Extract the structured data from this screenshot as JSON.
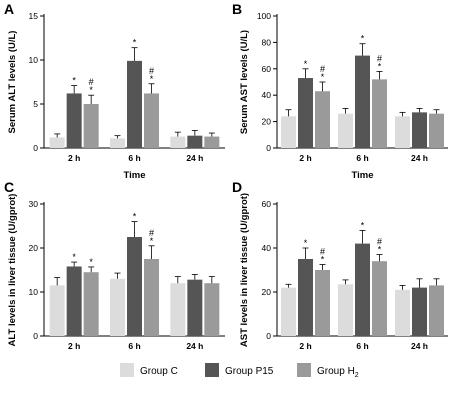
{
  "colors": {
    "group_c": "#dcdcdc",
    "group_p15": "#555555",
    "group_h2": "#9a9a9a",
    "axis": "#000000"
  },
  "legend": {
    "items": [
      {
        "label": "Group C",
        "color": "#dcdcdc"
      },
      {
        "label": "Group P15",
        "color": "#555555"
      },
      {
        "label": "Group H",
        "sub": "2",
        "color": "#9a9a9a"
      }
    ]
  },
  "chart_data": [
    {
      "type": "bar",
      "panel": "A",
      "ylabel": "Serum ALT levels (U/L)",
      "xlabel": "Time",
      "categories": [
        "2 h",
        "6 h",
        "24 h"
      ],
      "ylim": [
        0,
        15
      ],
      "yticks": [
        0,
        5,
        10,
        15
      ],
      "series": [
        {
          "name": "Group C",
          "values": [
            1.2,
            1.1,
            1.3
          ],
          "errors": [
            0.4,
            0.3,
            0.5
          ]
        },
        {
          "name": "Group P15",
          "values": [
            6.2,
            9.9,
            1.4
          ],
          "errors": [
            0.9,
            1.5,
            0.6
          ]
        },
        {
          "name": "Group H2",
          "values": [
            5.0,
            6.2,
            1.3
          ],
          "errors": [
            1.0,
            1.1,
            0.4
          ]
        }
      ],
      "annotations": [
        {
          "category": "2 h",
          "series": "Group P15",
          "marks": [
            "*"
          ]
        },
        {
          "category": "2 h",
          "series": "Group H2",
          "marks": [
            "#",
            "*"
          ]
        },
        {
          "category": "6 h",
          "series": "Group P15",
          "marks": [
            "*"
          ]
        },
        {
          "category": "6 h",
          "series": "Group H2",
          "marks": [
            "#",
            "*"
          ]
        }
      ]
    },
    {
      "type": "bar",
      "panel": "B",
      "ylabel": "Serum AST levels (U/L)",
      "xlabel": "Time",
      "categories": [
        "2 h",
        "6 h",
        "24 h"
      ],
      "ylim": [
        0,
        100
      ],
      "yticks": [
        0,
        20,
        40,
        60,
        80,
        100
      ],
      "series": [
        {
          "name": "Group C",
          "values": [
            24,
            26,
            24
          ],
          "errors": [
            5,
            4,
            3
          ]
        },
        {
          "name": "Group P15",
          "values": [
            53,
            70,
            27
          ],
          "errors": [
            7,
            9,
            3
          ]
        },
        {
          "name": "Group H2",
          "values": [
            43,
            52,
            26
          ],
          "errors": [
            7,
            6,
            3
          ]
        }
      ],
      "annotations": [
        {
          "category": "2 h",
          "series": "Group P15",
          "marks": [
            "*"
          ]
        },
        {
          "category": "2 h",
          "series": "Group H2",
          "marks": [
            "#",
            "*"
          ]
        },
        {
          "category": "6 h",
          "series": "Group P15",
          "marks": [
            "*"
          ]
        },
        {
          "category": "6 h",
          "series": "Group H2",
          "marks": [
            "#",
            "*"
          ]
        }
      ]
    },
    {
      "type": "bar",
      "panel": "C",
      "ylabel": "ALT levels in liver tissue (U/gprot)",
      "xlabel": "",
      "categories": [
        "2 h",
        "6 h",
        "24 h"
      ],
      "ylim": [
        0,
        30
      ],
      "yticks": [
        0,
        10,
        20,
        30
      ],
      "series": [
        {
          "name": "Group C",
          "values": [
            11.5,
            13.0,
            12.0
          ],
          "errors": [
            1.8,
            1.3,
            1.5
          ]
        },
        {
          "name": "Group P15",
          "values": [
            15.8,
            22.5,
            12.8
          ],
          "errors": [
            1.0,
            3.5,
            1.2
          ]
        },
        {
          "name": "Group H2",
          "values": [
            14.5,
            17.5,
            12.0
          ],
          "errors": [
            1.2,
            3.0,
            1.5
          ]
        }
      ],
      "annotations": [
        {
          "category": "2 h",
          "series": "Group P15",
          "marks": [
            "*"
          ]
        },
        {
          "category": "2 h",
          "series": "Group H2",
          "marks": [
            "*"
          ]
        },
        {
          "category": "6 h",
          "series": "Group P15",
          "marks": [
            "*"
          ]
        },
        {
          "category": "6 h",
          "series": "Group H2",
          "marks": [
            "#",
            "*"
          ]
        }
      ]
    },
    {
      "type": "bar",
      "panel": "D",
      "ylabel": "AST levels in liver tissue (U/gprot)",
      "xlabel": "",
      "categories": [
        "2 h",
        "6 h",
        "24 h"
      ],
      "ylim": [
        0,
        60
      ],
      "yticks": [
        0,
        20,
        40,
        60
      ],
      "series": [
        {
          "name": "Group C",
          "values": [
            22,
            23.5,
            21
          ],
          "errors": [
            1.5,
            2,
            2
          ]
        },
        {
          "name": "Group P15",
          "values": [
            35,
            42,
            22
          ],
          "errors": [
            5,
            6,
            4
          ]
        },
        {
          "name": "Group H2",
          "values": [
            30,
            34,
            23
          ],
          "errors": [
            2.5,
            3,
            3
          ]
        }
      ],
      "annotations": [
        {
          "category": "2 h",
          "series": "Group P15",
          "marks": [
            "*"
          ]
        },
        {
          "category": "2 h",
          "series": "Group H2",
          "marks": [
            "#",
            "*"
          ]
        },
        {
          "category": "6 h",
          "series": "Group P15",
          "marks": [
            "*"
          ]
        },
        {
          "category": "6 h",
          "series": "Group H2",
          "marks": [
            "#",
            "*"
          ]
        }
      ]
    }
  ]
}
